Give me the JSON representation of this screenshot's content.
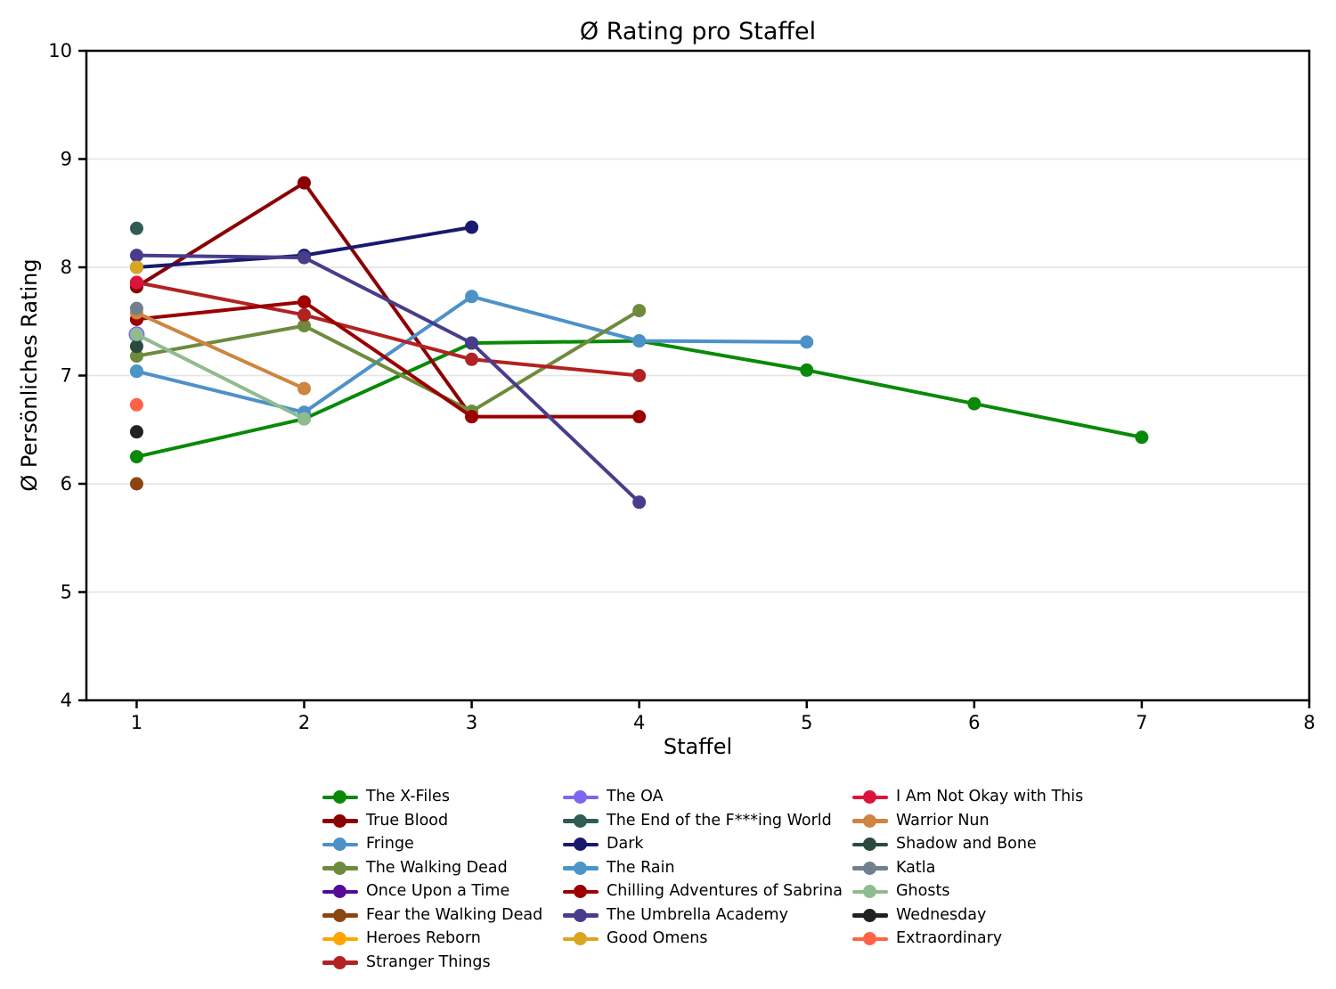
{
  "chart_data": {
    "type": "line",
    "title": "Ø Rating pro Staffel",
    "xlabel": "Staffel",
    "ylabel": "Ø Persönliches Rating",
    "xlim": [
      0.7,
      8
    ],
    "ylim": [
      4,
      10
    ],
    "x_ticks": [
      1,
      2,
      3,
      4,
      5,
      6,
      7,
      8
    ],
    "y_ticks": [
      4,
      5,
      6,
      7,
      8,
      9,
      10
    ],
    "grid": "horizontal",
    "legend_position": "below",
    "legend_columns": [
      8,
      7,
      7
    ],
    "series": [
      {
        "name": "The X-Files",
        "color": "#088A08",
        "seasons": [
          1,
          2,
          3,
          4,
          5,
          6,
          7
        ],
        "ratings": [
          6.25,
          6.6,
          7.3,
          7.32,
          7.05,
          6.74,
          6.43
        ]
      },
      {
        "name": "True Blood",
        "color": "#8B0000",
        "seasons": [
          1,
          2,
          3
        ],
        "ratings": [
          7.82,
          8.78,
          6.62
        ]
      },
      {
        "name": "Fringe",
        "color": "#4E91C9",
        "seasons": [
          1,
          2,
          3,
          4,
          5
        ],
        "ratings": [
          7.04,
          6.66,
          7.73,
          7.32,
          7.31
        ]
      },
      {
        "name": "The Walking Dead",
        "color": "#6E8B3D",
        "seasons": [
          1,
          2,
          3,
          4
        ],
        "ratings": [
          7.18,
          7.46,
          6.67,
          7.6
        ]
      },
      {
        "name": "Once Upon a Time",
        "color": "#550996",
        "seasons": [
          1
        ],
        "ratings": [
          7.52
        ]
      },
      {
        "name": "Fear the Walking Dead",
        "color": "#8B4513",
        "seasons": [
          1
        ],
        "ratings": [
          6.0
        ]
      },
      {
        "name": "Heroes Reborn",
        "color": "#FFA500",
        "seasons": [
          1
        ],
        "ratings": [
          8.0
        ]
      },
      {
        "name": "Stranger Things",
        "color": "#B22222",
        "seasons": [
          1,
          2,
          3,
          4
        ],
        "ratings": [
          7.86,
          7.56,
          7.15,
          7.0
        ]
      },
      {
        "name": "The OA",
        "color": "#7B68EE",
        "seasons": [
          1
        ],
        "ratings": [
          7.38
        ],
        "marker_radius": 9
      },
      {
        "name": "The End of the F***ing World",
        "color": "#2F5D55",
        "seasons": [
          1
        ],
        "ratings": [
          8.36
        ]
      },
      {
        "name": "Dark",
        "color": "#191970",
        "seasons": [
          1,
          2,
          3
        ],
        "ratings": [
          8.0,
          8.11,
          8.37
        ]
      },
      {
        "name": "The Rain",
        "color": "#4A96C8",
        "seasons": [
          1
        ],
        "ratings": [
          7.04
        ]
      },
      {
        "name": "Chilling Adventures of Sabrina",
        "color": "#9B0000",
        "seasons": [
          1,
          2,
          3,
          4
        ],
        "ratings": [
          7.52,
          7.68,
          6.62,
          6.62
        ]
      },
      {
        "name": "The Umbrella Academy",
        "color": "#483D8B",
        "seasons": [
          1,
          2,
          3,
          4
        ],
        "ratings": [
          8.11,
          8.09,
          7.3,
          5.83
        ]
      },
      {
        "name": "Good Omens",
        "color": "#DAA520",
        "seasons": [
          1
        ],
        "ratings": [
          8.0
        ]
      },
      {
        "name": "I Am Not Okay with This",
        "color": "#DC143C",
        "seasons": [
          1
        ],
        "ratings": [
          7.86
        ]
      },
      {
        "name": "Warrior Nun",
        "color": "#CD853F",
        "seasons": [
          1,
          2
        ],
        "ratings": [
          7.58,
          6.88
        ]
      },
      {
        "name": "Shadow and Bone",
        "color": "#2B4A3E",
        "seasons": [
          1
        ],
        "ratings": [
          7.27
        ]
      },
      {
        "name": "Katla",
        "color": "#708090",
        "seasons": [
          1
        ],
        "ratings": [
          7.62
        ]
      },
      {
        "name": "Ghosts",
        "color": "#8FBC8F",
        "seasons": [
          1,
          2
        ],
        "ratings": [
          7.38,
          6.6
        ]
      },
      {
        "name": "Wednesday",
        "color": "#212121",
        "seasons": [
          1
        ],
        "ratings": [
          6.48
        ]
      },
      {
        "name": "Extraordinary",
        "color": "#FF6347",
        "seasons": [
          1
        ],
        "ratings": [
          6.73
        ]
      }
    ]
  }
}
